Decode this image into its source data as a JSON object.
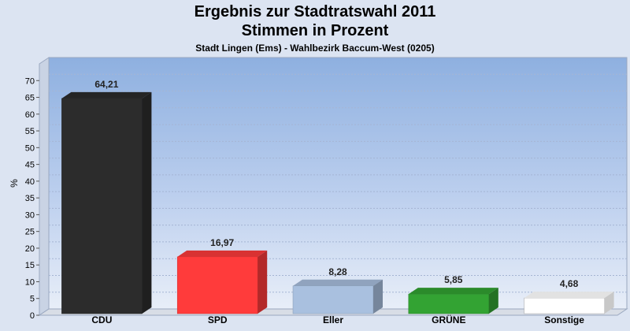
{
  "header": {
    "title_line1": "Ergebnis zur Stadtratswahl 2011",
    "title_line2": "Stimmen in Prozent",
    "subtitle": "Stadt Lingen (Ems) - Wahlbezirk Baccum-West (0205)"
  },
  "chart_data": {
    "type": "bar",
    "title": "Ergebnis zur Stadtratswahl 2011 Stimmen in Prozent",
    "subtitle": "Stadt Lingen (Ems) - Wahlbezirk Baccum-West (0205)",
    "xlabel": "",
    "ylabel": "%",
    "ylim": [
      0,
      75
    ],
    "yticks": [
      0,
      5,
      10,
      15,
      20,
      25,
      30,
      35,
      40,
      45,
      50,
      55,
      60,
      65,
      70
    ],
    "grid": true,
    "categories": [
      "CDU",
      "SPD",
      "Eller",
      "GRÜNE",
      "Sonstige"
    ],
    "values": [
      64.21,
      16.97,
      8.28,
      5.85,
      4.68
    ],
    "value_labels": [
      "64,21",
      "16,97",
      "8,28",
      "5,85",
      "4,68"
    ],
    "colors": [
      "#2c2c2c",
      "#ff3b3b",
      "#a9c0df",
      "#33a333",
      "#ffffff"
    ]
  }
}
